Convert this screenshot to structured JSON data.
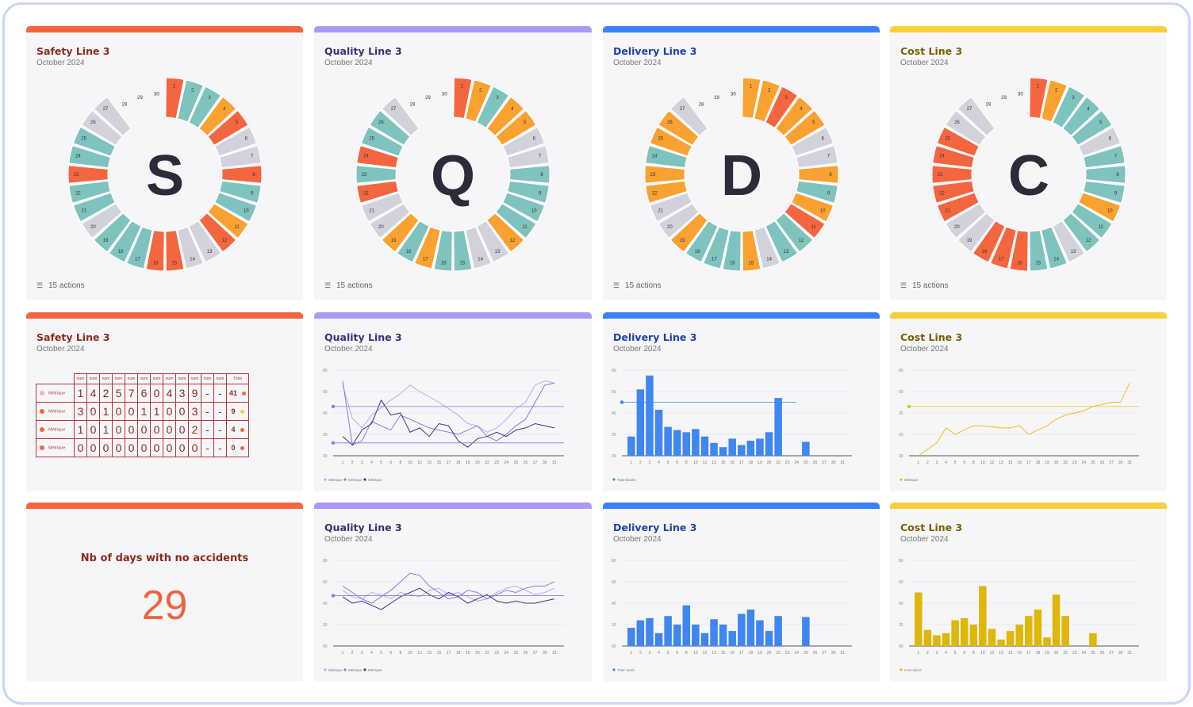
{
  "colors": {
    "safety": "#f3663f",
    "quality": "#ad98f4",
    "delivery": "#3b82f6",
    "cost": "#f8cf3a",
    "teal": "#7ec3bd",
    "orange": "#f9a131",
    "red": "#f3663f",
    "grey": "#d2d2dc",
    "blue_bar": "#3f86ee",
    "cost_bar": "#dfb60a"
  },
  "cards": {
    "safety_wheel": {
      "title": "Safety Line 3",
      "subtitle": "October 2024",
      "letter": "S",
      "actions": "15 actions",
      "title_color": "#8b2b1a"
    },
    "quality_wheel": {
      "title": "Quality Line 3",
      "subtitle": "October 2024",
      "letter": "Q",
      "actions": "15 actions",
      "title_color": "#3d2e78"
    },
    "delivery_wheel": {
      "title": "Delivery Line 3",
      "subtitle": "October 2024",
      "letter": "D",
      "actions": "15 actions",
      "title_color": "#1e3fa8"
    },
    "cost_wheel": {
      "title": "Cost Line 3",
      "subtitle": "October 2024",
      "letter": "C",
      "actions": "15 actions",
      "title_color": "#7a6000"
    },
    "safety_table": {
      "title": "Safety Line 3",
      "subtitle": "October 2024"
    },
    "quality_line1": {
      "title": "Quality Line 3",
      "subtitle": "October 2024"
    },
    "delivery_bar1": {
      "title": "Delivery Line 3",
      "subtitle": "October 2024"
    },
    "cost_line1": {
      "title": "Cost Line 3",
      "subtitle": "October 2024"
    },
    "safety_kpi": {
      "label": "Nb of days with no accidents",
      "value": "29"
    },
    "quality_line2": {
      "title": "Quality Line 3",
      "subtitle": "October 2024"
    },
    "delivery_bar2": {
      "title": "Delivery Line 3",
      "subtitle": "October 2024"
    },
    "cost_bar2": {
      "title": "Cost Line 3",
      "subtitle": "October 2024"
    }
  },
  "wheel_status": {
    "safety": [
      "R",
      "T",
      "T",
      "O",
      "R",
      "G",
      "G",
      "R",
      "T",
      "T",
      "O",
      "R",
      "G",
      "G",
      "R",
      "R",
      "T",
      "T",
      "T",
      "G",
      "T",
      "T",
      "R",
      "T",
      "T",
      "G",
      "G",
      "E",
      "E",
      "E"
    ],
    "quality": [
      "R",
      "O",
      "T",
      "O",
      "O",
      "G",
      "G",
      "T",
      "T",
      "T",
      "T",
      "O",
      "G",
      "G",
      "T",
      "T",
      "O",
      "T",
      "O",
      "G",
      "G",
      "R",
      "T",
      "R",
      "T",
      "T",
      "G",
      "E",
      "E",
      "E"
    ],
    "delivery": [
      "O",
      "O",
      "R",
      "O",
      "O",
      "G",
      "G",
      "O",
      "T",
      "O",
      "R",
      "T",
      "T",
      "G",
      "O",
      "T",
      "T",
      "T",
      "O",
      "G",
      "G",
      "O",
      "O",
      "T",
      "O",
      "O",
      "G",
      "E",
      "E",
      "E"
    ],
    "cost": [
      "R",
      "O",
      "T",
      "T",
      "T",
      "G",
      "T",
      "T",
      "T",
      "O",
      "T",
      "T",
      "G",
      "T",
      "T",
      "R",
      "R",
      "R",
      "G",
      "G",
      "R",
      "R",
      "R",
      "R",
      "R",
      "G",
      "G",
      "E",
      "E",
      "E"
    ]
  },
  "safety_table": {
    "headers": [
      "num",
      "num",
      "num",
      "num",
      "num",
      "num",
      "num",
      "num",
      "num",
      "num",
      "num",
      "num",
      "num"
    ],
    "total_header": "Total",
    "rows": [
      {
        "label": "Métrique",
        "dot": "#f6b5b5",
        "digits": [
          "1",
          "4",
          "2",
          "5",
          "7",
          "6",
          "0",
          "4",
          "3",
          "9",
          "-",
          "-"
        ],
        "total": "41",
        "tdot": "#f3663f"
      },
      {
        "label": "Métrique",
        "dot": "#f3663f",
        "digits": [
          "3",
          "0",
          "1",
          "0",
          "0",
          "1",
          "1",
          "0",
          "0",
          "3",
          "-",
          "-"
        ],
        "total": "9",
        "tdot": "#f8cf3a"
      },
      {
        "label": "Métrique",
        "dot": "#f3663f",
        "digits": [
          "1",
          "0",
          "1",
          "0",
          "0",
          "0",
          "0",
          "0",
          "0",
          "2",
          "-",
          "-"
        ],
        "total": "4",
        "tdot": "#f3663f"
      },
      {
        "label": "Métrique",
        "dot": "#f3663f",
        "digits": [
          "0",
          "0",
          "0",
          "0",
          "0",
          "0",
          "0",
          "0",
          "0",
          "0",
          "-",
          "-"
        ],
        "total": "0",
        "tdot": "#f3663f"
      }
    ]
  },
  "chart_data": [
    {
      "id": "quality_line1",
      "type": "line",
      "title": "Quality Line 3",
      "subtitle": "October 2024",
      "x": [
        "1",
        "2",
        "3",
        "4",
        "5",
        "6",
        "8",
        "10",
        "12",
        "13",
        "15",
        "17",
        "18",
        "19",
        "20",
        "22",
        "23",
        "24",
        "25",
        "26",
        "27",
        "30",
        "31"
      ],
      "ylim": [
        0,
        80
      ],
      "yticks": [
        "80",
        "60",
        "40",
        "20",
        "00"
      ],
      "target": 46,
      "target2": 12,
      "series": [
        {
          "name": "Métrique",
          "color": "#b9a8f0",
          "values": [
            66,
            35,
            26,
            38,
            45,
            52,
            58,
            66,
            60,
            55,
            50,
            44,
            38,
            30,
            28,
            22,
            26,
            34,
            44,
            50,
            66,
            70,
            68
          ]
        },
        {
          "name": "Métrique",
          "color": "#8c78e0",
          "values": [
            70,
            10,
            14,
            32,
            28,
            24,
            38,
            34,
            30,
            26,
            24,
            22,
            20,
            24,
            28,
            18,
            14,
            20,
            28,
            34,
            50,
            66,
            68
          ]
        },
        {
          "name": "Métrique",
          "color": "#3e3478",
          "values": [
            18,
            10,
            24,
            30,
            52,
            38,
            40,
            22,
            26,
            18,
            30,
            28,
            14,
            8,
            16,
            18,
            22,
            18,
            24,
            26,
            30,
            28,
            26
          ]
        }
      ],
      "legend": [
        "Métrique",
        "Métrique",
        "Métrique"
      ]
    },
    {
      "id": "delivery_bar1",
      "type": "bar",
      "title": "Delivery Line 3",
      "subtitle": "October 2024",
      "x": [
        "1",
        "2",
        "3",
        "4",
        "5",
        "6",
        "8",
        "10",
        "12",
        "13",
        "15",
        "16",
        "17",
        "18",
        "19",
        "20",
        "22",
        "23",
        "24",
        "25",
        "26",
        "27",
        "30",
        "31"
      ],
      "ylim": [
        0,
        80
      ],
      "yticks": [
        "80",
        "60",
        "40",
        "20",
        "00"
      ],
      "target": 50,
      "values": [
        18,
        62,
        75,
        43,
        27,
        24,
        22,
        25,
        18,
        12,
        8,
        16,
        10,
        14,
        16,
        22,
        54,
        0,
        0,
        13,
        0,
        0,
        0,
        0
      ],
      "legend": [
        "Total blanks"
      ]
    },
    {
      "id": "cost_line1",
      "type": "line",
      "title": "Cost Line 3",
      "subtitle": "October 2024",
      "x": [
        "1",
        "2",
        "3",
        "4",
        "5",
        "6",
        "8",
        "10",
        "12",
        "13",
        "15",
        "16",
        "17",
        "18",
        "19",
        "20",
        "22",
        "23",
        "24",
        "25",
        "26",
        "27",
        "30",
        "31"
      ],
      "ylim": [
        0,
        80
      ],
      "yticks": [
        "80",
        "60",
        "25",
        "20",
        "00"
      ],
      "target": 46,
      "series": [
        {
          "name": "Métrique",
          "color": "#e8c014",
          "values": [
            0,
            6,
            12,
            26,
            20,
            24,
            28,
            28,
            27,
            26,
            26,
            28,
            20,
            24,
            28,
            34,
            38,
            40,
            42,
            46,
            48,
            50,
            50,
            68
          ]
        }
      ],
      "legend": [
        "Métrique"
      ]
    },
    {
      "id": "quality_line2",
      "type": "line",
      "title": "Quality Line 3",
      "subtitle": "October 2024",
      "x": [
        "1",
        "2",
        "3",
        "4",
        "5",
        "6",
        "8",
        "10",
        "12",
        "13",
        "15",
        "17",
        "18",
        "19",
        "20",
        "22",
        "23",
        "24",
        "25",
        "26",
        "27",
        "30",
        "31"
      ],
      "ylim": [
        0,
        80
      ],
      "yticks": [
        "80",
        "60",
        "40",
        "20",
        "00"
      ],
      "target": 47,
      "series": [
        {
          "name": "Métrique",
          "color": "#b9a8f0",
          "values": [
            52,
            46,
            44,
            50,
            48,
            44,
            50,
            48,
            46,
            52,
            54,
            48,
            50,
            46,
            42,
            44,
            50,
            54,
            56,
            52,
            48,
            50,
            54
          ]
        },
        {
          "name": "Métrique",
          "color": "#8c78e0",
          "values": [
            56,
            50,
            44,
            40,
            46,
            52,
            60,
            68,
            66,
            56,
            50,
            44,
            46,
            52,
            50,
            44,
            48,
            52,
            50,
            54,
            56,
            56,
            60
          ]
        },
        {
          "name": "Métrique",
          "color": "#3e3478",
          "values": [
            46,
            40,
            42,
            38,
            34,
            40,
            46,
            50,
            54,
            48,
            44,
            50,
            46,
            40,
            44,
            48,
            42,
            40,
            42,
            40,
            40,
            42,
            44
          ]
        }
      ],
      "legend": [
        "Métrique",
        "Métrique",
        "Métrique"
      ]
    },
    {
      "id": "delivery_bar2",
      "type": "bar",
      "title": "Delivery Line 3",
      "subtitle": "October 2024",
      "x": [
        "1",
        "2",
        "3",
        "4",
        "5",
        "6",
        "8",
        "10",
        "12",
        "13",
        "15",
        "16",
        "17",
        "18",
        "19",
        "20",
        "22",
        "23",
        "24",
        "25",
        "26",
        "27",
        "30",
        "31"
      ],
      "ylim": [
        0,
        80
      ],
      "yticks": [
        "80",
        "60",
        "40",
        "20",
        "00"
      ],
      "values": [
        17,
        24,
        26,
        12,
        28,
        20,
        38,
        20,
        12,
        25,
        20,
        14,
        30,
        34,
        24,
        14,
        28,
        0,
        0,
        27,
        0,
        0,
        0,
        0
      ],
      "legend": [
        "Total cards"
      ]
    },
    {
      "id": "cost_bar2",
      "type": "bar",
      "title": "Cost Line 3",
      "subtitle": "October 2024",
      "x": [
        "1",
        "2",
        "3",
        "4",
        "5",
        "6",
        "8",
        "10",
        "12",
        "13",
        "15",
        "16",
        "17",
        "18",
        "19",
        "20",
        "22",
        "23",
        "24",
        "25",
        "26",
        "27",
        "30",
        "31"
      ],
      "ylim": [
        0,
        80
      ],
      "yticks": [
        "80",
        "60",
        "40",
        "25",
        "00"
      ],
      "values": [
        50,
        15,
        10,
        12,
        24,
        26,
        20,
        56,
        16,
        6,
        14,
        20,
        28,
        34,
        8,
        48,
        28,
        0,
        0,
        12,
        0,
        0,
        0,
        0
      ],
      "legend": [
        "Cost slices"
      ]
    }
  ]
}
